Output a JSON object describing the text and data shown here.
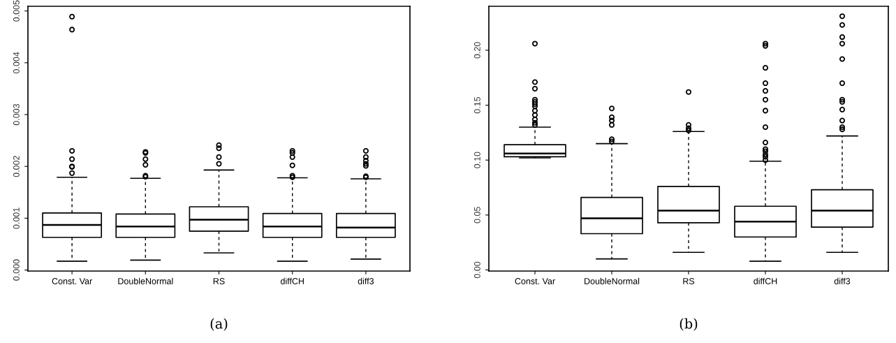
{
  "chart_data": [
    {
      "type": "box",
      "categories": [
        "Const. Var",
        "DoubleNormal",
        "RS",
        "diffCH",
        "diff3"
      ],
      "boxes": [
        {
          "low": 0.00017,
          "q1": 0.00063,
          "median": 0.00087,
          "q3": 0.0011,
          "high": 0.00179,
          "outliers": [
            0.00489,
            0.00464,
            0.0023,
            0.00214,
            0.002,
            0.00199,
            0.00187
          ]
        },
        {
          "low": 0.00019,
          "q1": 0.00063,
          "median": 0.00084,
          "q3": 0.00108,
          "high": 0.00177,
          "outliers": [
            0.00228,
            0.00226,
            0.00214,
            0.00203,
            0.00182,
            0.0018
          ]
        },
        {
          "low": 0.00033,
          "q1": 0.00075,
          "median": 0.00097,
          "q3": 0.00122,
          "high": 0.00193,
          "outliers": [
            0.00241,
            0.00235,
            0.00218,
            0.00205
          ]
        },
        {
          "low": 0.00017,
          "q1": 0.00063,
          "median": 0.00084,
          "q3": 0.00109,
          "high": 0.00178,
          "outliers": [
            0.0023,
            0.00226,
            0.00218,
            0.00202,
            0.00182,
            0.00179
          ]
        },
        {
          "low": 0.00021,
          "q1": 0.00063,
          "median": 0.00082,
          "q3": 0.00109,
          "high": 0.00176,
          "outliers": [
            0.0023,
            0.00218,
            0.00211,
            0.00205,
            0.00201,
            0.00181,
            0.00179
          ]
        }
      ],
      "ylim": [
        -2e-05,
        0.00509
      ],
      "yticks": [
        {
          "value": 0,
          "label": "0.000"
        },
        {
          "value": 0.001,
          "label": "0.001"
        },
        {
          "value": 0.002,
          "label": "0.002"
        },
        {
          "value": 0.003,
          "label": "0.003"
        },
        {
          "value": 0.004,
          "label": "0.004"
        },
        {
          "value": 0.005,
          "label": "0.005"
        }
      ],
      "grid": false,
      "legend": false,
      "marker": "circle",
      "annotations": [
        "(a)"
      ]
    },
    {
      "type": "box",
      "categories": [
        "Const. Var",
        "DoubleNormal",
        "RS",
        "diffCH",
        "diff3"
      ],
      "boxes": [
        {
          "low": 0.102,
          "q1": 0.103,
          "median": 0.106,
          "q3": 0.114,
          "high": 0.13,
          "outliers": [
            0.206,
            0.171,
            0.165,
            0.155,
            0.153,
            0.151,
            0.149,
            0.145,
            0.141,
            0.137,
            0.134,
            0.132
          ]
        },
        {
          "low": 0.01,
          "q1": 0.033,
          "median": 0.047,
          "q3": 0.066,
          "high": 0.115,
          "outliers": [
            0.147,
            0.139,
            0.136,
            0.132,
            0.119,
            0.117
          ]
        },
        {
          "low": 0.016,
          "q1": 0.043,
          "median": 0.054,
          "q3": 0.076,
          "high": 0.126,
          "outliers": [
            0.162,
            0.132,
            0.129,
            0.127
          ]
        },
        {
          "low": 0.008,
          "q1": 0.03,
          "median": 0.044,
          "q3": 0.058,
          "high": 0.099,
          "outliers": [
            0.206,
            0.204,
            0.184,
            0.17,
            0.163,
            0.155,
            0.145,
            0.13,
            0.116,
            0.11,
            0.108,
            0.105,
            0.103,
            0.1
          ]
        },
        {
          "low": 0.016,
          "q1": 0.039,
          "median": 0.054,
          "q3": 0.073,
          "high": 0.122,
          "outliers": [
            0.231,
            0.223,
            0.212,
            0.206,
            0.192,
            0.17,
            0.155,
            0.153,
            0.146,
            0.136,
            0.13,
            0.128
          ]
        }
      ],
      "ylim": [
        -0.001,
        0.24
      ],
      "yticks": [
        {
          "value": 0,
          "label": "0.00"
        },
        {
          "value": 0.05,
          "label": "0.05"
        },
        {
          "value": 0.1,
          "label": "0.10"
        },
        {
          "value": 0.15,
          "label": "0.15"
        },
        {
          "value": 0.2,
          "label": "0.20"
        }
      ],
      "grid": false,
      "legend": false,
      "marker": "circle",
      "annotations": [
        "(b)"
      ]
    }
  ]
}
